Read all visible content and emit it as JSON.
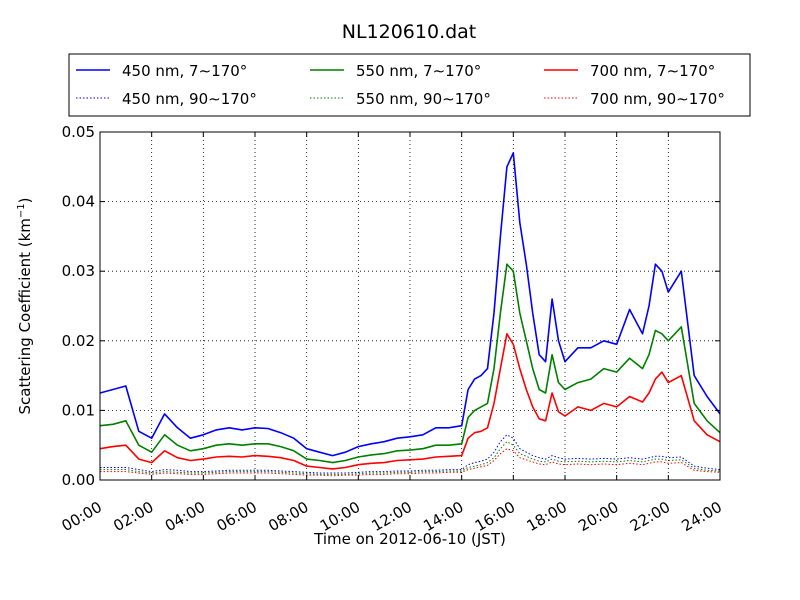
{
  "chart_data": {
    "type": "line",
    "title": "NL120610.dat",
    "xlabel": "Time on 2012-06-10 (JST)",
    "ylabel": "Scattering Coefficient (km",
    "ylabel_sup": "−1",
    "ylabel_close": ")",
    "xlim": [
      0,
      24
    ],
    "ylim": [
      0,
      0.05
    ],
    "grid": true,
    "legend_position": "top",
    "x_tick_labels": [
      "00:00",
      "02:00",
      "04:00",
      "06:00",
      "08:00",
      "10:00",
      "12:00",
      "14:00",
      "16:00",
      "18:00",
      "20:00",
      "22:00",
      "24:00"
    ],
    "x_ticks": [
      0,
      2,
      4,
      6,
      8,
      10,
      12,
      14,
      16,
      18,
      20,
      22,
      24
    ],
    "y_tick_labels": [
      "0.00",
      "0.01",
      "0.02",
      "0.03",
      "0.04",
      "0.05"
    ],
    "y_ticks": [
      0,
      0.01,
      0.02,
      0.03,
      0.04,
      0.05
    ],
    "x": [
      0,
      0.5,
      1,
      1.5,
      2,
      2.5,
      3,
      3.5,
      4,
      4.5,
      5,
      5.5,
      6,
      6.5,
      7,
      7.5,
      8,
      8.5,
      9,
      9.5,
      10,
      10.5,
      11,
      11.5,
      12,
      12.5,
      13,
      13.5,
      14,
      14.25,
      14.5,
      14.75,
      15,
      15.25,
      15.5,
      15.75,
      16,
      16.25,
      16.5,
      16.75,
      17,
      17.25,
      17.5,
      17.75,
      18,
      18.5,
      19,
      19.5,
      20,
      20.5,
      21,
      21.25,
      21.5,
      21.75,
      22,
      22.5,
      23,
      23.5,
      24
    ],
    "series": [
      {
        "name": "450 nm, 7∼170°",
        "color": "#0000ff",
        "style": "solid",
        "values": [
          0.0125,
          0.013,
          0.0135,
          0.007,
          0.006,
          0.0095,
          0.0075,
          0.006,
          0.0065,
          0.0072,
          0.0075,
          0.0072,
          0.0075,
          0.0074,
          0.0068,
          0.006,
          0.0045,
          0.004,
          0.0035,
          0.004,
          0.0048,
          0.0052,
          0.0055,
          0.006,
          0.0062,
          0.0065,
          0.0075,
          0.0075,
          0.0078,
          0.013,
          0.0145,
          0.015,
          0.016,
          0.024,
          0.035,
          0.045,
          0.047,
          0.037,
          0.031,
          0.024,
          0.018,
          0.017,
          0.026,
          0.02,
          0.017,
          0.019,
          0.019,
          0.02,
          0.0195,
          0.0245,
          0.021,
          0.025,
          0.031,
          0.03,
          0.027,
          0.03,
          0.015,
          0.012,
          0.0095
        ]
      },
      {
        "name": "450 nm, 90∼170°",
        "color": "#0000ff",
        "style": "dotted",
        "values": [
          0.0018,
          0.0018,
          0.0018,
          0.0015,
          0.0012,
          0.0015,
          0.0014,
          0.0012,
          0.0012,
          0.0013,
          0.0014,
          0.0014,
          0.0014,
          0.0014,
          0.0013,
          0.0012,
          0.0011,
          0.001,
          0.001,
          0.001,
          0.0011,
          0.0012,
          0.0012,
          0.0013,
          0.0013,
          0.0014,
          0.0014,
          0.0015,
          0.0015,
          0.0022,
          0.0025,
          0.0027,
          0.003,
          0.004,
          0.0055,
          0.0065,
          0.006,
          0.0045,
          0.004,
          0.0035,
          0.0032,
          0.003,
          0.0035,
          0.0032,
          0.003,
          0.0031,
          0.003,
          0.0031,
          0.003,
          0.0032,
          0.003,
          0.0032,
          0.0034,
          0.0034,
          0.0032,
          0.0033,
          0.002,
          0.0017,
          0.0015
        ]
      },
      {
        "name": "550 nm, 7∼170°",
        "color": "#008000",
        "style": "solid",
        "values": [
          0.0078,
          0.008,
          0.0085,
          0.005,
          0.004,
          0.0065,
          0.005,
          0.0042,
          0.0045,
          0.005,
          0.0052,
          0.005,
          0.0052,
          0.0052,
          0.0048,
          0.0042,
          0.003,
          0.0028,
          0.0025,
          0.0028,
          0.0033,
          0.0036,
          0.0038,
          0.0042,
          0.0043,
          0.0045,
          0.005,
          0.005,
          0.0052,
          0.009,
          0.01,
          0.0105,
          0.011,
          0.016,
          0.024,
          0.031,
          0.03,
          0.024,
          0.02,
          0.016,
          0.013,
          0.0125,
          0.018,
          0.014,
          0.013,
          0.014,
          0.0145,
          0.016,
          0.0155,
          0.0175,
          0.016,
          0.018,
          0.0215,
          0.021,
          0.02,
          0.022,
          0.011,
          0.0085,
          0.0068
        ]
      },
      {
        "name": "550 nm, 90∼170°",
        "color": "#008000",
        "style": "dotted",
        "values": [
          0.0015,
          0.0015,
          0.0015,
          0.0012,
          0.001,
          0.0012,
          0.0011,
          0.001,
          0.001,
          0.0011,
          0.0012,
          0.0012,
          0.0012,
          0.0012,
          0.0011,
          0.001,
          0.0009,
          0.0008,
          0.0008,
          0.0008,
          0.0009,
          0.001,
          0.001,
          0.0011,
          0.0011,
          0.0012,
          0.0012,
          0.0013,
          0.0013,
          0.0018,
          0.002,
          0.0022,
          0.0025,
          0.0032,
          0.0045,
          0.0055,
          0.005,
          0.0038,
          0.0034,
          0.003,
          0.0027,
          0.0026,
          0.003,
          0.0027,
          0.0026,
          0.0027,
          0.0026,
          0.0027,
          0.0026,
          0.0028,
          0.0026,
          0.0028,
          0.003,
          0.003,
          0.0028,
          0.0029,
          0.0017,
          0.0014,
          0.0013
        ]
      },
      {
        "name": "700 nm, 7∼170°",
        "color": "#ff0000",
        "style": "solid",
        "values": [
          0.0045,
          0.0048,
          0.005,
          0.003,
          0.0025,
          0.0042,
          0.0032,
          0.0028,
          0.003,
          0.0033,
          0.0034,
          0.0033,
          0.0035,
          0.0034,
          0.0032,
          0.0028,
          0.002,
          0.0018,
          0.0016,
          0.0018,
          0.0022,
          0.0024,
          0.0025,
          0.0028,
          0.0029,
          0.003,
          0.0033,
          0.0034,
          0.0035,
          0.006,
          0.0068,
          0.007,
          0.0075,
          0.011,
          0.016,
          0.021,
          0.0195,
          0.016,
          0.013,
          0.0105,
          0.0088,
          0.0085,
          0.0125,
          0.0098,
          0.0092,
          0.0105,
          0.01,
          0.011,
          0.0105,
          0.012,
          0.0112,
          0.0125,
          0.0145,
          0.0155,
          0.014,
          0.015,
          0.0085,
          0.0065,
          0.0055
        ]
      },
      {
        "name": "700 nm, 90∼170°",
        "color": "#ff0000",
        "style": "dotted",
        "values": [
          0.0012,
          0.0012,
          0.0012,
          0.001,
          0.0008,
          0.001,
          0.0009,
          0.0008,
          0.0008,
          0.0009,
          0.001,
          0.001,
          0.001,
          0.001,
          0.0009,
          0.0008,
          0.0007,
          0.0007,
          0.0006,
          0.0007,
          0.0007,
          0.0008,
          0.0008,
          0.0009,
          0.0009,
          0.001,
          0.001,
          0.0011,
          0.0011,
          0.0015,
          0.0017,
          0.0019,
          0.0021,
          0.0028,
          0.0038,
          0.0045,
          0.0042,
          0.0032,
          0.0029,
          0.0026,
          0.0023,
          0.0022,
          0.0026,
          0.0023,
          0.0022,
          0.0023,
          0.0022,
          0.0023,
          0.0022,
          0.0024,
          0.0022,
          0.0024,
          0.0026,
          0.0026,
          0.0024,
          0.0025,
          0.0014,
          0.0012,
          0.0011
        ]
      }
    ],
    "legend_order": [
      0,
      2,
      4,
      1,
      3,
      5
    ]
  }
}
